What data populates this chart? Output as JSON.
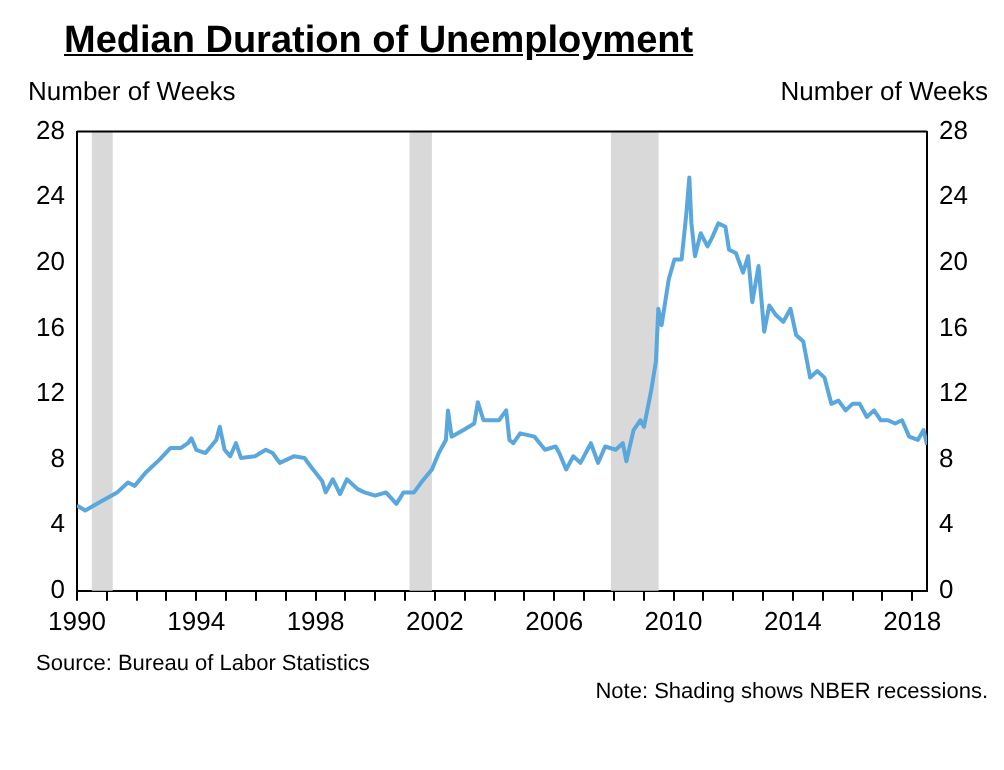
{
  "chart_data": {
    "type": "line",
    "title": "Median Duration of Unemployment",
    "ylabel": "Number of Weeks",
    "y2label": "Number of Weeks",
    "annotations": [
      "Source: Bureau of Labor Statistics",
      "Note: Shading shows NBER recessions."
    ],
    "series": [
      {
        "color": "#5aa7dd",
        "x": [
          1990.0,
          1990.28,
          1990.76,
          1991.35,
          1991.71,
          1991.94,
          1992.3,
          1992.77,
          1993.13,
          1993.48,
          1993.72,
          1993.84,
          1994.0,
          1994.31,
          1994.67,
          1994.79,
          1994.95,
          1995.14,
          1995.33,
          1995.5,
          1995.97,
          1996.33,
          1996.56,
          1996.8,
          1997.27,
          1997.63,
          1997.87,
          1998.22,
          1998.34,
          1998.58,
          1998.82,
          1999.05,
          1999.41,
          1999.64,
          2000.0,
          2000.36,
          2000.71,
          2000.95,
          2001.3,
          2001.54,
          2001.9,
          2002.13,
          2002.37,
          2002.44,
          2002.56,
          2002.96,
          2003.32,
          2003.44,
          2003.63,
          2004.15,
          2004.39,
          2004.5,
          2004.63,
          2004.86,
          2005.34,
          2005.69,
          2006.05,
          2006.17,
          2006.4,
          2006.64,
          2006.88,
          2007.23,
          2007.47,
          2007.71,
          2008.06,
          2008.3,
          2008.42,
          2008.66,
          2008.89,
          2009.01,
          2009.25,
          2009.41,
          2009.49,
          2009.6,
          2009.84,
          2010.03,
          2010.27,
          2010.43,
          2010.53,
          2010.6,
          2010.72,
          2010.91,
          2011.14,
          2011.31,
          2011.5,
          2011.74,
          2011.86,
          2012.09,
          2012.33,
          2012.5,
          2012.64,
          2012.85,
          2013.04,
          2013.21,
          2013.44,
          2013.68,
          2013.92,
          2014.11,
          2014.35,
          2014.58,
          2014.82,
          2015.06,
          2015.29,
          2015.53,
          2015.77,
          2016.0,
          2016.24,
          2016.48,
          2016.72,
          2016.95,
          2017.19,
          2017.43,
          2017.66,
          2017.9,
          2018.19,
          2018.38,
          2018.5
        ],
        "values": [
          5.2,
          4.9,
          5.4,
          6.0,
          6.6,
          6.4,
          7.2,
          8.0,
          8.7,
          8.7,
          9.0,
          9.3,
          8.6,
          8.4,
          9.2,
          10.0,
          8.6,
          8.2,
          9.0,
          8.1,
          8.2,
          8.6,
          8.4,
          7.8,
          8.2,
          8.1,
          7.5,
          6.7,
          6.0,
          6.8,
          5.9,
          6.8,
          6.2,
          6.0,
          5.8,
          6.0,
          5.3,
          6.0,
          6.0,
          6.6,
          7.4,
          8.4,
          9.2,
          11.0,
          9.4,
          9.8,
          10.2,
          11.5,
          10.4,
          10.4,
          11.0,
          9.2,
          9.0,
          9.6,
          9.4,
          8.6,
          8.8,
          8.4,
          7.4,
          8.2,
          7.8,
          9.0,
          7.8,
          8.8,
          8.6,
          9.0,
          7.9,
          9.8,
          10.4,
          10.0,
          12.2,
          14.0,
          17.2,
          16.2,
          19.0,
          20.2,
          20.2,
          23.0,
          25.2,
          22.4,
          20.4,
          21.8,
          21.0,
          21.6,
          22.4,
          22.2,
          20.8,
          20.6,
          19.4,
          20.4,
          17.6,
          19.8,
          15.8,
          17.4,
          16.8,
          16.4,
          17.2,
          15.6,
          15.2,
          13.0,
          13.4,
          13.0,
          11.4,
          11.6,
          11.0,
          11.4,
          11.4,
          10.6,
          11.0,
          10.4,
          10.4,
          10.2,
          10.4,
          9.4,
          9.2,
          9.8,
          8.9
        ]
      }
    ],
    "xlim": [
      1990,
      2018.5
    ],
    "xticks": [
      1990,
      {
        "value": 1991,
        "label": null
      },
      {
        "value": 1992,
        "label": null
      },
      {
        "value": 1993,
        "label": null
      },
      1994,
      {
        "value": 1995,
        "label": null
      },
      {
        "value": 1996,
        "label": null
      },
      {
        "value": 1997,
        "label": null
      },
      1998,
      {
        "value": 1999,
        "label": null
      },
      {
        "value": 2000,
        "label": null
      },
      {
        "value": 2001,
        "label": null
      },
      2002,
      {
        "value": 2003,
        "label": null
      },
      {
        "value": 2004,
        "label": null
      },
      {
        "value": 2005,
        "label": null
      },
      2006,
      {
        "value": 2007,
        "label": null
      },
      {
        "value": 2008,
        "label": null
      },
      {
        "value": 2009,
        "label": null
      },
      2010,
      {
        "value": 2011,
        "label": null
      },
      {
        "value": 2012,
        "label": null
      },
      {
        "value": 2013,
        "label": null
      },
      2014,
      {
        "value": 2015,
        "label": null
      },
      {
        "value": 2016,
        "label": null
      },
      {
        "value": 2017,
        "label": null
      },
      2018
    ],
    "ylim": [
      0,
      28
    ],
    "yticks": [
      0,
      4,
      8,
      12,
      16,
      20,
      24,
      28
    ],
    "y2lim": [
      0,
      28
    ],
    "y2ticks": [
      0,
      4,
      8,
      12,
      16,
      20,
      24,
      28
    ],
    "bands": [
      {
        "axis": "x",
        "from": 1990.5,
        "to": 1991.2,
        "color": "#d9d9d9"
      },
      {
        "axis": "x",
        "from": 2001.15,
        "to": 2001.9,
        "color": "#d9d9d9"
      },
      {
        "axis": "x",
        "from": 2007.9,
        "to": 2009.5,
        "color": "#d9d9d9"
      }
    ],
    "grid": false,
    "legend": false,
    "marker": "none",
    "line_style": "solid"
  }
}
